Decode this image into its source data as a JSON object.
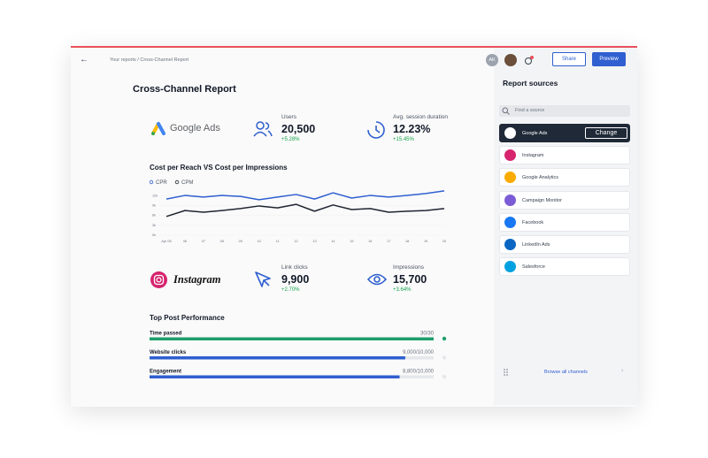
{
  "header": {
    "breadcrumb": "Your reports / Cross-Channel Report",
    "avatar": "AK",
    "share": "Share",
    "preview": "Preview"
  },
  "report": {
    "title": "Cross-Channel Report",
    "google": {
      "brand": "Google Ads",
      "metrics": [
        {
          "label": "Users",
          "value": "20,500",
          "change": "+5.28%"
        },
        {
          "label": "Avg. session duration",
          "value": "12.23%",
          "change": "+15.45%"
        }
      ]
    },
    "instagram": {
      "brand": "Instagram",
      "metrics": [
        {
          "label": "Link clicks",
          "value": "9,900",
          "change": "+2.70%"
        },
        {
          "label": "Impressions",
          "value": "15,700",
          "change": "+3.64%"
        }
      ]
    }
  },
  "chart_data": {
    "type": "line",
    "title": "Cost per Reach VS Cost per Impressions",
    "categories": [
      "Apr 05",
      "06",
      "07",
      "08",
      "09",
      "10",
      "11",
      "12",
      "13",
      "14",
      "15",
      "16",
      "17",
      "18",
      "19",
      "20"
    ],
    "series": [
      {
        "name": "CPR",
        "color": "#2f5fd0",
        "values": [
          11.0,
          12.1,
          11.6,
          12.1,
          11.8,
          10.8,
          11.6,
          12.4,
          11.0,
          12.9,
          11.3,
          12.1,
          11.6,
          12.1,
          12.7,
          13.5
        ]
      },
      {
        "name": "CPM",
        "color": "#1f2430",
        "values": [
          5.7,
          7.5,
          7.0,
          7.5,
          8.1,
          8.9,
          8.3,
          9.4,
          7.3,
          9.2,
          7.8,
          8.1,
          7.0,
          7.3,
          7.5,
          8.1
        ]
      }
    ],
    "ylim": [
      0,
      14
    ],
    "yticks": [
      {
        "value": 0,
        "label": "0k"
      },
      {
        "value": 3,
        "label": "3k"
      },
      {
        "value": 6,
        "label": "6k"
      },
      {
        "value": 9,
        "label": "9k"
      },
      {
        "value": 12,
        "label": "12k"
      }
    ],
    "grid": true
  },
  "performance": {
    "title": "Top Post Performance",
    "rows": [
      {
        "label": "Time passed",
        "value": 30,
        "max": 30,
        "text": "30/30",
        "color": "#1e9e6a"
      },
      {
        "label": "Website clicks",
        "value": 9000,
        "max": 10000,
        "text": "9,000/10,000",
        "color": "#2f5fd0"
      },
      {
        "label": "Engagement",
        "value": 8800,
        "max": 10000,
        "text": "8,800/10,000",
        "color": "#2f5fd0"
      }
    ]
  },
  "sources": {
    "title": "Report sources",
    "search": "Find a source",
    "action": "Change",
    "browse": "Browse all channels",
    "items": [
      "Google Ads",
      "Instagram",
      "Google Analytics",
      "Campaign Monitor",
      "Facebook",
      "LinkedIn Ads",
      "Salesforce"
    ]
  }
}
